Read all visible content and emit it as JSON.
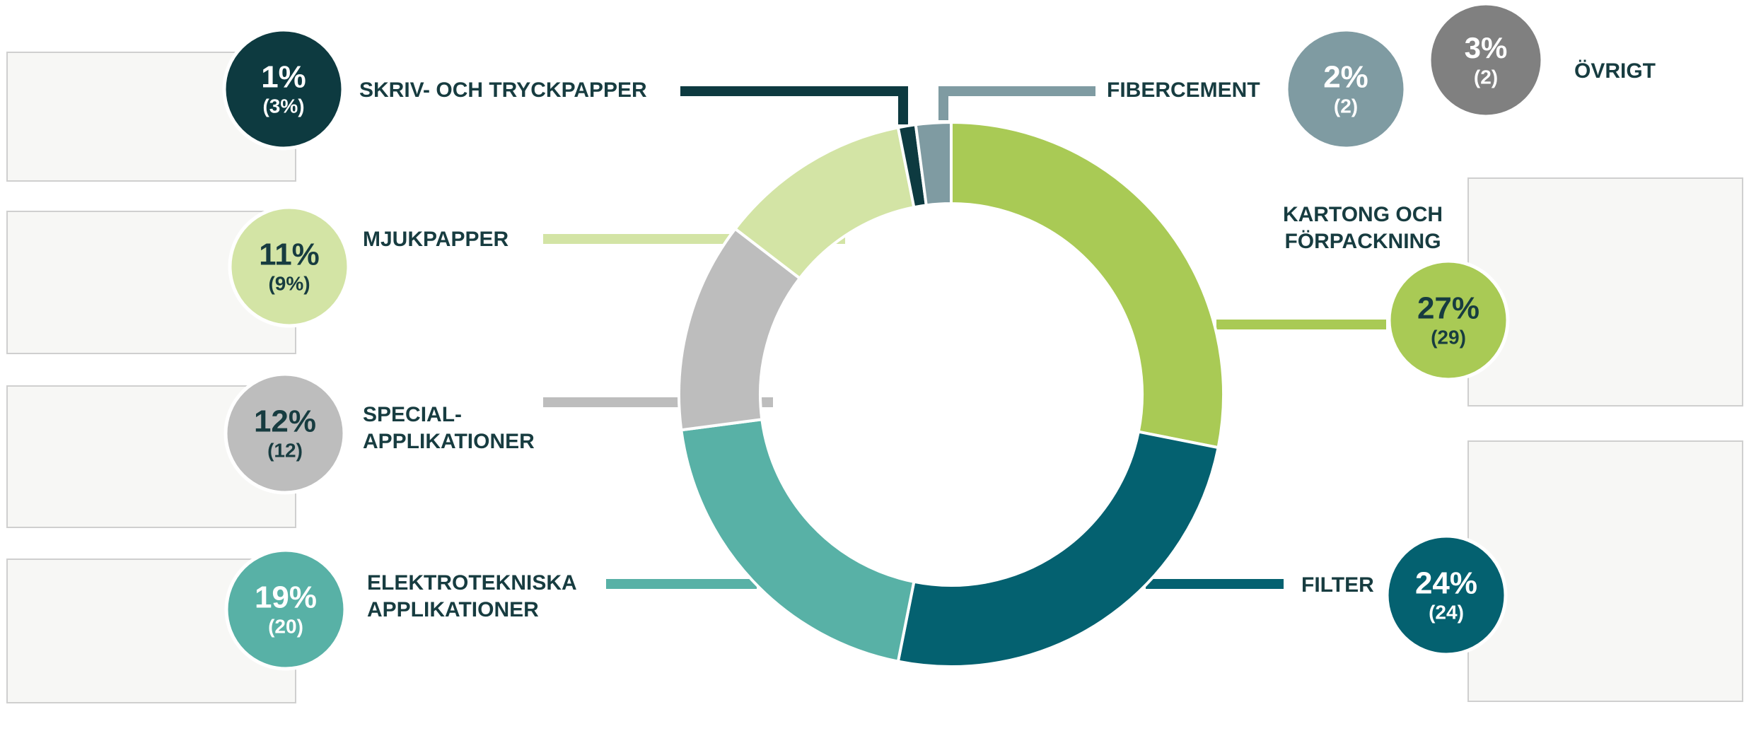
{
  "chart_data": {
    "type": "donut",
    "categories": [
      [
        "KARTONG OCH",
        "FÖRPACKNING"
      ],
      [
        "FILTER"
      ],
      [
        "ELEKTROTEKNISKA",
        "APPLIKATIONER"
      ],
      [
        "SPECIAL-",
        "APPLIKATIONER"
      ],
      [
        "MJUKPAPPER"
      ],
      [
        "SKRIV- OCH TRYCKPAPPER"
      ],
      [
        "FIBERCEMENT"
      ]
    ],
    "values": [
      27,
      24,
      19,
      12,
      11,
      1,
      2
    ],
    "value_labels": [
      "27%",
      "24%",
      "19%",
      "12%",
      "11%",
      "1%",
      "2%"
    ],
    "sub_labels": [
      "(29)",
      "(24)",
      "(20)",
      "(12)",
      "(9%)",
      "(3%)",
      "(2)"
    ],
    "colors": [
      "#a9ca55",
      "#046170",
      "#58b1a6",
      "#bdbdbd",
      "#d3e4a5",
      "#0d3a40",
      "#7f9ba2"
    ],
    "other": {
      "name": "ÖVRIGT",
      "value": 3,
      "value_label": "3%",
      "sub_label": "(2)",
      "color": "#808080"
    }
  }
}
